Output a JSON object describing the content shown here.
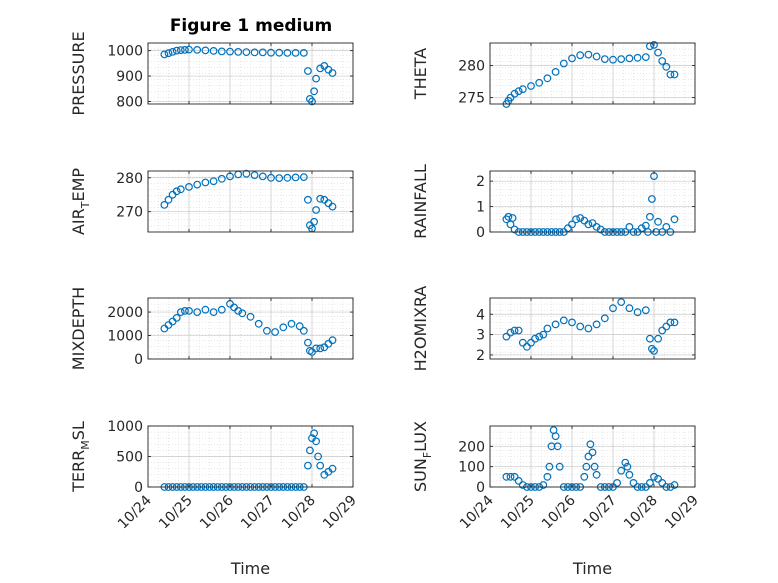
{
  "figure": {
    "title": "Figure 1 medium",
    "marker_color": "#0072BD",
    "axis_color": "#262626",
    "grid_color": "#d9d9d9"
  },
  "chart_data": [
    {
      "type": "scatter",
      "ylabel": "PRESSURE",
      "xlabel": "",
      "xlim": [
        24,
        29
      ],
      "ylim": [
        790,
        1030
      ],
      "yticks": [
        800,
        900,
        1000
      ],
      "ytick_labels": [
        "800",
        "900",
        "1000"
      ],
      "xticks": [
        24,
        25,
        26,
        27,
        28,
        29
      ],
      "xtick_labels": [],
      "x": [
        24.4,
        24.5,
        24.6,
        24.7,
        24.8,
        24.9,
        25.0,
        25.2,
        25.4,
        25.6,
        25.8,
        26.0,
        26.2,
        26.4,
        26.6,
        26.8,
        27.0,
        27.2,
        27.4,
        27.6,
        27.8,
        27.9,
        27.95,
        28.0,
        28.05,
        28.1,
        28.2,
        28.3,
        28.4,
        28.5
      ],
      "y": [
        985,
        990,
        995,
        1000,
        1002,
        1003,
        1004,
        1003,
        1001,
        999,
        997,
        996,
        995,
        994,
        993,
        993,
        992,
        992,
        991,
        991,
        991,
        920,
        810,
        800,
        840,
        890,
        930,
        940,
        925,
        912
      ]
    },
    {
      "type": "scatter",
      "ylabel": "THETA",
      "xlabel": "",
      "xlim": [
        24,
        29
      ],
      "ylim": [
        274,
        283.5
      ],
      "yticks": [
        275,
        280
      ],
      "ytick_labels": [
        "275",
        "280"
      ],
      "xticks": [
        24,
        25,
        26,
        27,
        28,
        29
      ],
      "xtick_labels": [],
      "x": [
        24.4,
        24.45,
        24.5,
        24.6,
        24.7,
        24.8,
        25.0,
        25.2,
        25.4,
        25.6,
        25.8,
        26.0,
        26.2,
        26.4,
        26.6,
        26.8,
        27.0,
        27.2,
        27.4,
        27.6,
        27.8,
        27.9,
        28.0,
        28.1,
        28.2,
        28.3,
        28.4,
        28.5
      ],
      "y": [
        274,
        274.5,
        275,
        275.6,
        276,
        276.3,
        276.8,
        277.3,
        278,
        279,
        280.3,
        281.1,
        281.6,
        281.7,
        281.4,
        281,
        280.9,
        281,
        281.1,
        281.2,
        281.3,
        283,
        283.2,
        282,
        280.7,
        279.8,
        278.6,
        278.6
      ]
    },
    {
      "type": "scatter",
      "ylabel": "AIR_TEMP",
      "xlabel": "",
      "xlim": [
        24,
        29
      ],
      "ylim": [
        264,
        282
      ],
      "yticks": [
        270,
        280
      ],
      "ytick_labels": [
        "270",
        "280"
      ],
      "xticks": [
        24,
        25,
        26,
        27,
        28,
        29
      ],
      "xtick_labels": [],
      "x": [
        24.4,
        24.5,
        24.6,
        24.7,
        24.8,
        25.0,
        25.2,
        25.4,
        25.6,
        25.8,
        26.0,
        26.2,
        26.4,
        26.6,
        26.8,
        27.0,
        27.2,
        27.4,
        27.6,
        27.8,
        27.9,
        27.95,
        28.0,
        28.05,
        28.1,
        28.2,
        28.3,
        28.4,
        28.5
      ],
      "y": [
        272,
        273.5,
        275,
        276,
        276.6,
        277.3,
        278,
        278.6,
        279,
        279.7,
        280.4,
        281,
        281.2,
        280.8,
        280.4,
        280,
        279.9,
        280,
        280.1,
        280.2,
        273.5,
        266,
        265,
        267,
        270.5,
        273.8,
        273.5,
        272.5,
        271.5
      ]
    },
    {
      "type": "scatter",
      "ylabel": "RAINFALL",
      "xlabel": "",
      "xlim": [
        24,
        29
      ],
      "ylim": [
        0,
        2.4
      ],
      "yticks": [
        0,
        1,
        2
      ],
      "ytick_labels": [
        "0",
        "1",
        "2"
      ],
      "xticks": [
        24,
        25,
        26,
        27,
        28,
        29
      ],
      "xtick_labels": [],
      "x": [
        24.4,
        24.45,
        24.5,
        24.55,
        24.6,
        24.7,
        24.8,
        24.9,
        25.0,
        25.1,
        25.2,
        25.3,
        25.4,
        25.5,
        25.6,
        25.7,
        25.8,
        25.9,
        26.0,
        26.1,
        26.2,
        26.3,
        26.4,
        26.5,
        26.6,
        26.7,
        26.8,
        26.9,
        27.0,
        27.1,
        27.2,
        27.3,
        27.4,
        27.5,
        27.6,
        27.7,
        27.8,
        27.85,
        27.9,
        27.95,
        28.0,
        28.05,
        28.1,
        28.2,
        28.3,
        28.4,
        28.5
      ],
      "y": [
        0.5,
        0.6,
        0.3,
        0.55,
        0.1,
        0,
        0,
        0,
        0,
        0,
        0,
        0,
        0,
        0,
        0,
        0,
        0,
        0.15,
        0.3,
        0.5,
        0.55,
        0.45,
        0.3,
        0.35,
        0.2,
        0.1,
        0,
        0,
        0,
        0,
        0,
        0,
        0.2,
        0,
        0,
        0.15,
        0.25,
        0,
        0.6,
        1.3,
        2.2,
        0,
        0.4,
        0,
        0.2,
        0,
        0.5
      ]
    },
    {
      "type": "scatter",
      "ylabel": "MIXDEPTH",
      "xlabel": "",
      "xlim": [
        24,
        29
      ],
      "ylim": [
        0,
        2600
      ],
      "yticks": [
        0,
        1000,
        2000
      ],
      "ytick_labels": [
        "0",
        "1000",
        "2000"
      ],
      "xticks": [
        24,
        25,
        26,
        27,
        28,
        29
      ],
      "xtick_labels": [],
      "x": [
        24.4,
        24.5,
        24.6,
        24.7,
        24.8,
        24.9,
        25.0,
        25.2,
        25.4,
        25.6,
        25.8,
        26.0,
        26.1,
        26.2,
        26.3,
        26.5,
        26.7,
        26.9,
        27.1,
        27.3,
        27.5,
        27.7,
        27.8,
        27.9,
        27.95,
        28.0,
        28.1,
        28.2,
        28.3,
        28.4,
        28.5
      ],
      "y": [
        1300,
        1450,
        1600,
        1750,
        2000,
        2050,
        2050,
        2000,
        2100,
        2000,
        2100,
        2350,
        2200,
        2050,
        1950,
        1800,
        1500,
        1200,
        1150,
        1350,
        1500,
        1400,
        1200,
        700,
        350,
        300,
        450,
        450,
        500,
        650,
        800
      ]
    },
    {
      "type": "scatter",
      "ylabel": "H2OMIXRA",
      "xlabel": "",
      "xlim": [
        24,
        29
      ],
      "ylim": [
        1.8,
        4.8
      ],
      "yticks": [
        2,
        3,
        4
      ],
      "ytick_labels": [
        "2",
        "3",
        "4"
      ],
      "xticks": [
        24,
        25,
        26,
        27,
        28,
        29
      ],
      "xtick_labels": [],
      "x": [
        24.4,
        24.5,
        24.6,
        24.7,
        24.8,
        24.9,
        25.0,
        25.1,
        25.2,
        25.3,
        25.4,
        25.6,
        25.8,
        26.0,
        26.2,
        26.4,
        26.6,
        26.8,
        27.0,
        27.2,
        27.4,
        27.6,
        27.8,
        27.9,
        27.95,
        28.0,
        28.1,
        28.2,
        28.3,
        28.4,
        28.5
      ],
      "y": [
        2.9,
        3.1,
        3.2,
        3.2,
        2.6,
        2.4,
        2.6,
        2.8,
        2.9,
        3.0,
        3.3,
        3.5,
        3.7,
        3.6,
        3.4,
        3.3,
        3.5,
        3.8,
        4.3,
        4.6,
        4.3,
        4.1,
        4.2,
        2.8,
        2.3,
        2.2,
        2.8,
        3.2,
        3.4,
        3.6,
        3.6
      ]
    },
    {
      "type": "scatter",
      "ylabel": "TERR_MSL",
      "xlabel": "Time",
      "xlim": [
        24,
        29
      ],
      "ylim": [
        0,
        1000
      ],
      "yticks": [
        0,
        500,
        1000
      ],
      "ytick_labels": [
        "0",
        "500",
        "1000"
      ],
      "xticks": [
        24,
        25,
        26,
        27,
        28,
        29
      ],
      "xtick_labels": [
        "10/24",
        "10/25",
        "10/26",
        "10/27",
        "10/28",
        "10/29"
      ],
      "x": [
        24.4,
        24.5,
        24.6,
        24.7,
        24.8,
        24.9,
        25.0,
        25.1,
        25.2,
        25.3,
        25.4,
        25.5,
        25.6,
        25.7,
        25.8,
        25.9,
        26.0,
        26.1,
        26.2,
        26.3,
        26.4,
        26.5,
        26.6,
        26.7,
        26.8,
        26.9,
        27.0,
        27.1,
        27.2,
        27.3,
        27.4,
        27.5,
        27.6,
        27.7,
        27.8,
        27.9,
        27.95,
        28.0,
        28.05,
        28.1,
        28.15,
        28.2,
        28.3,
        28.4,
        28.5
      ],
      "y": [
        0,
        0,
        0,
        0,
        0,
        0,
        0,
        0,
        0,
        0,
        0,
        0,
        0,
        0,
        0,
        0,
        0,
        0,
        0,
        0,
        0,
        0,
        0,
        0,
        0,
        0,
        0,
        0,
        0,
        0,
        0,
        0,
        0,
        0,
        0,
        350,
        600,
        800,
        880,
        750,
        500,
        350,
        200,
        250,
        300
      ]
    },
    {
      "type": "scatter",
      "ylabel": "SUN_FLUX",
      "xlabel": "Time",
      "xlim": [
        24,
        29
      ],
      "ylim": [
        0,
        300
      ],
      "yticks": [
        0,
        100,
        200
      ],
      "ytick_labels": [
        "0",
        "100",
        "200"
      ],
      "xticks": [
        24,
        25,
        26,
        27,
        28,
        29
      ],
      "xtick_labels": [
        "10/24",
        "10/25",
        "10/26",
        "10/27",
        "10/28",
        "10/29"
      ],
      "x": [
        24.4,
        24.5,
        24.6,
        24.7,
        24.8,
        24.9,
        25.0,
        25.1,
        25.2,
        25.3,
        25.4,
        25.45,
        25.5,
        25.55,
        25.6,
        25.65,
        25.7,
        25.8,
        25.9,
        26.0,
        26.1,
        26.2,
        26.3,
        26.35,
        26.4,
        26.45,
        26.5,
        26.55,
        26.6,
        26.7,
        26.8,
        26.9,
        27.0,
        27.1,
        27.2,
        27.3,
        27.35,
        27.4,
        27.5,
        27.6,
        27.7,
        27.8,
        27.9,
        28.0,
        28.1,
        28.2,
        28.3,
        28.4,
        28.5
      ],
      "y": [
        50,
        50,
        50,
        30,
        10,
        0,
        0,
        0,
        0,
        10,
        50,
        100,
        200,
        280,
        250,
        200,
        100,
        0,
        0,
        0,
        0,
        0,
        50,
        100,
        150,
        210,
        170,
        100,
        60,
        0,
        0,
        0,
        0,
        20,
        80,
        120,
        100,
        60,
        20,
        0,
        0,
        0,
        20,
        50,
        40,
        20,
        0,
        0,
        10
      ]
    }
  ]
}
